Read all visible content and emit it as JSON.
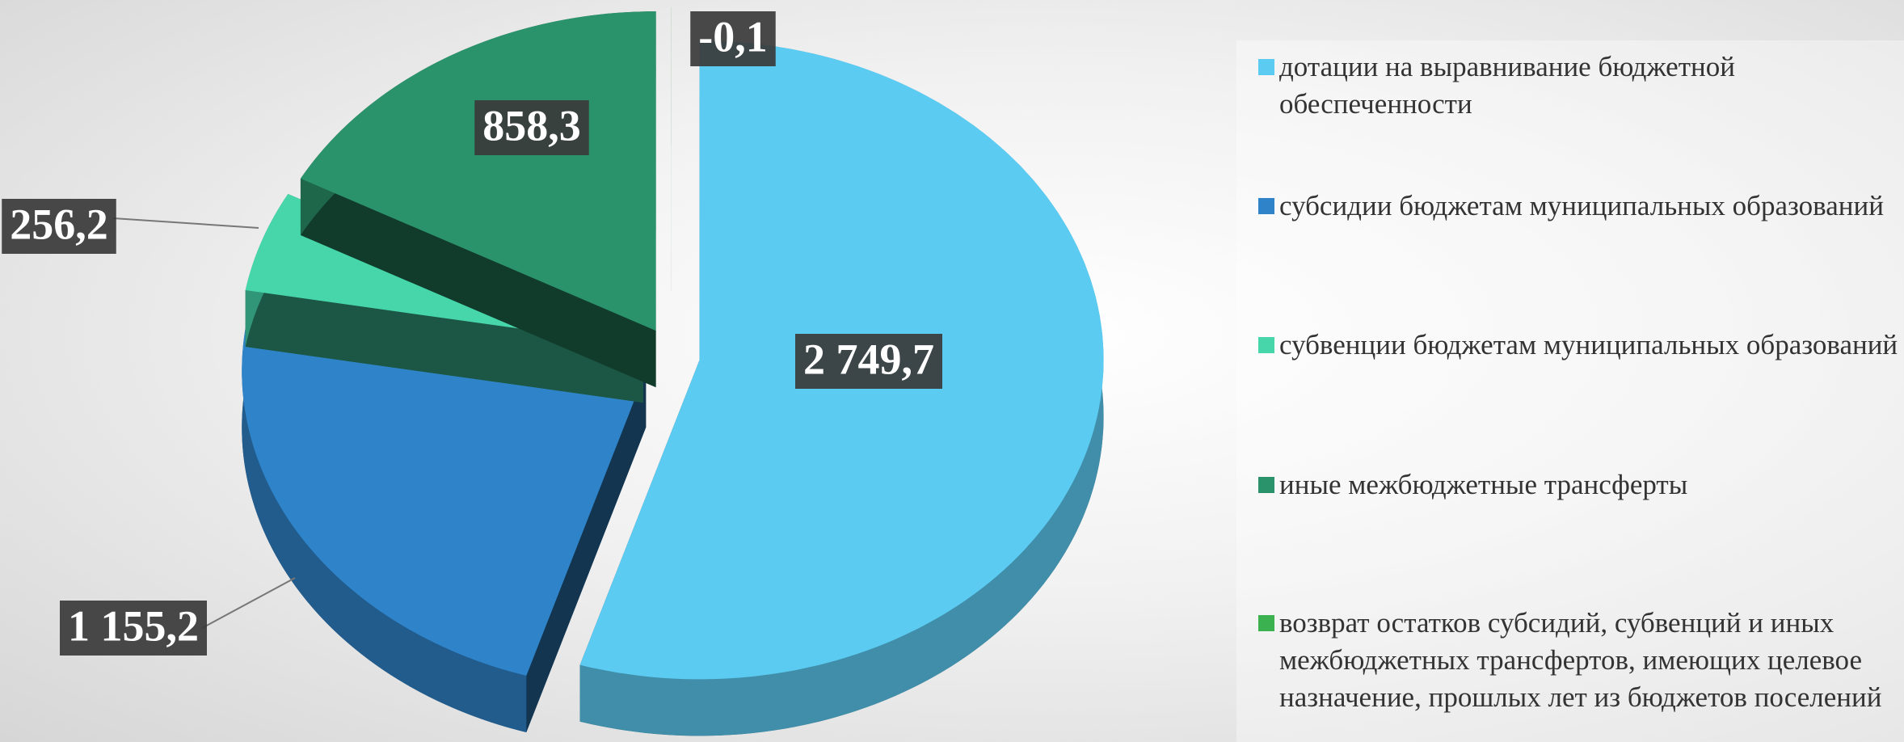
{
  "chart_data": {
    "type": "pie",
    "categories": [
      "дотации на выравнивание бюджетной обеспеченности",
      "субсидии бюджетам муниципальных образований",
      "субвенции  бюджетам муниципальных образований",
      "иные межбюджетные трансферты",
      "возврат остатков субсидий, субвенций и иных межбюджетных трансфертов, имеющих целевое назначение, прошлых лет из бюджетов поселений"
    ],
    "values": [
      2749.7,
      1155.2,
      256.2,
      858.3,
      -0.1
    ],
    "value_labels": [
      "2 749,7",
      "1 155,2",
      "256,2",
      "858,3",
      "-0,1"
    ],
    "colors": [
      "#5ccbf2",
      "#2f84c9",
      "#46d6aa",
      "#2b936b",
      "#3cb150"
    ],
    "legend": "right"
  }
}
